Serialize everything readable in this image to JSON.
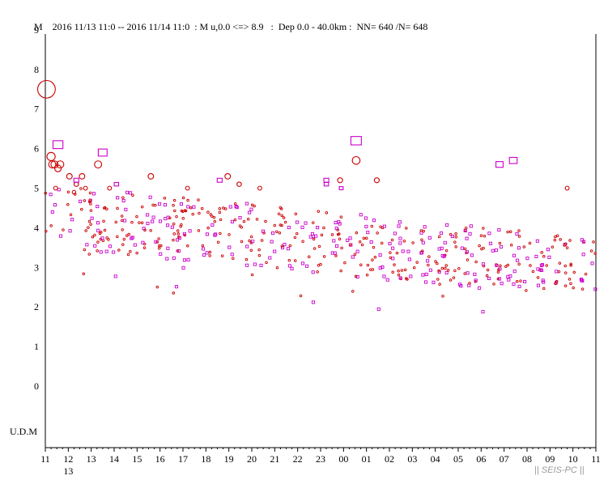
{
  "header": {
    "text": "M    2016 11/13 11:0 -- 2016 11/14 11:0  : M u,0.0 <=> 8.9   :  Dep 0.0 - 40.0km :  NN= 640 /N= 648"
  },
  "watermark": "|| SEIS-PC ||",
  "colors": {
    "red": "#cc0000",
    "magenta": "#cc00cc",
    "axis": "#000000"
  },
  "chart_data": {
    "type": "scatter",
    "title": "2016 11/13 11:0 -- 2016 11/14 11:0  : M u,0.0 <=> 8.9   :  Dep 0.0 - 40.0km :  NN= 640 /N= 648",
    "ylabel": "M",
    "ylim": [
      0,
      9
    ],
    "y_ticks": [
      "0",
      "1",
      "2",
      "3",
      "4",
      "5",
      "6",
      "7",
      "8",
      "9"
    ],
    "y_extra_label": "U.D.M",
    "xlim_hours": [
      0,
      24
    ],
    "x_tick_labels": [
      "11",
      "12",
      "13",
      "14",
      "15",
      "16",
      "17",
      "18",
      "19",
      "20",
      "21",
      "22",
      "23",
      "00",
      "01",
      "02",
      "03",
      "04",
      "05",
      "06",
      "07",
      "08",
      "09",
      "10",
      "11"
    ],
    "x_date_label": "13",
    "series": [
      {
        "marker": "circle",
        "color": "#cc0000",
        "points": [
          [
            0.05,
            7.5
          ],
          [
            0.25,
            5.8
          ],
          [
            0.3,
            5.6
          ],
          [
            0.4,
            5.6
          ],
          [
            0.45,
            5.0
          ],
          [
            0.55,
            5.5
          ],
          [
            0.65,
            5.6
          ],
          [
            1.05,
            5.3
          ],
          [
            1.25,
            4.9
          ],
          [
            1.35,
            5.1
          ],
          [
            1.6,
            5.3
          ],
          [
            1.75,
            5.0
          ],
          [
            2.3,
            5.6
          ],
          [
            2.8,
            5.0
          ],
          [
            4.6,
            5.3
          ],
          [
            6.2,
            5.0
          ],
          [
            7.95,
            5.3
          ],
          [
            8.45,
            5.1
          ],
          [
            9.35,
            5.0
          ],
          [
            12.85,
            5.2
          ],
          [
            13.55,
            5.7
          ],
          [
            14.45,
            5.2
          ],
          [
            22.75,
            5.0
          ]
        ]
      },
      {
        "marker": "square",
        "color": "#cc00cc",
        "points": [
          [
            0.55,
            6.1
          ],
          [
            1.35,
            5.2
          ],
          [
            2.5,
            5.9
          ],
          [
            3.1,
            5.1
          ],
          [
            7.6,
            5.2
          ],
          [
            12.25,
            5.2
          ],
          [
            12.25,
            5.1
          ],
          [
            12.9,
            5.0
          ],
          [
            13.55,
            6.2
          ],
          [
            19.8,
            5.6
          ],
          [
            20.4,
            5.7
          ]
        ]
      }
    ]
  }
}
